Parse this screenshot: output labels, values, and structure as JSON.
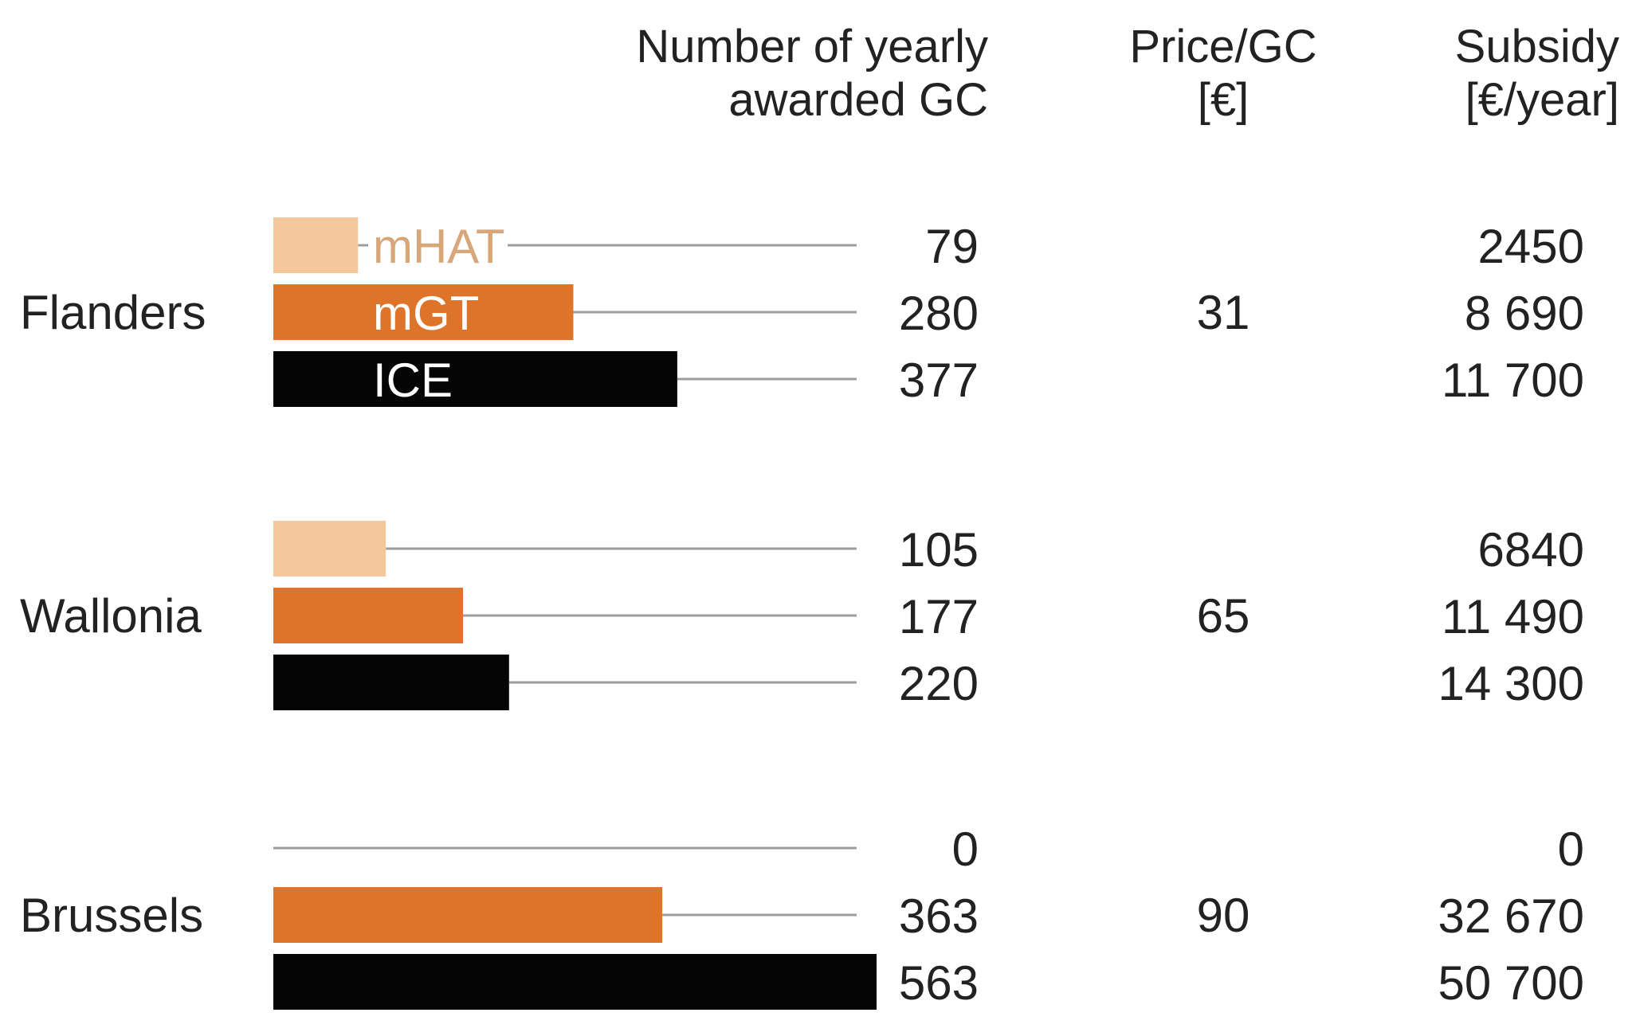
{
  "chart_data": {
    "type": "bar",
    "orientation": "horizontal",
    "title": "",
    "headers": {
      "count": [
        "Number of yearly",
        "awarded GC"
      ],
      "price": [
        "Price/GC",
        "[€]"
      ],
      "subsidy": [
        "Subsidy",
        "[€/year]"
      ]
    },
    "series": [
      {
        "name": "mHAT",
        "color": "#F4C89B",
        "text_color": "#D7A77A"
      },
      {
        "name": "mGT",
        "color": "#DE732A",
        "text_color": "#FFFFFF"
      },
      {
        "name": "ICE",
        "color": "#050505",
        "text_color": "#FFFFFF"
      }
    ],
    "xlim": [
      0,
      563
    ],
    "groups": [
      {
        "region": "Flanders",
        "price": "31",
        "values": [
          79,
          280,
          377
        ],
        "value_labels": [
          "79",
          "280",
          "377"
        ],
        "subsidy": [
          "2450",
          "8 690",
          "11 700"
        ]
      },
      {
        "region": "Wallonia",
        "price": "65",
        "values": [
          105,
          177,
          220
        ],
        "value_labels": [
          "105",
          "177",
          "220"
        ],
        "subsidy": [
          "6840",
          "11 490",
          "14 300"
        ]
      },
      {
        "region": "Brussels",
        "price": "90",
        "values": [
          0,
          363,
          563
        ],
        "value_labels": [
          "0",
          "363",
          "563"
        ],
        "subsidy": [
          "0",
          "32 670",
          "50 700"
        ]
      }
    ],
    "leader_line_color": "#9E9E9E",
    "text_color": "#222222"
  }
}
